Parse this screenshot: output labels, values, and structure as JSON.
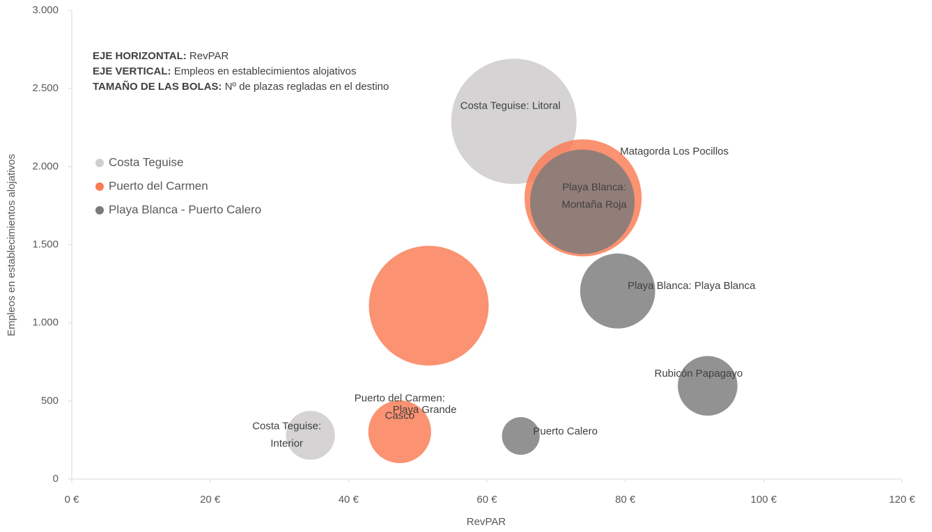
{
  "chart_data": {
    "type": "bubble",
    "x_label": "RevPAR",
    "y_label": "Empleos en establecimientos alojativos",
    "annotations": [
      {
        "label": "EJE HORIZONTAL:",
        "text": "RevPAR"
      },
      {
        "label": "EJE VERTICAL:",
        "text": "Empleos en establecimientos alojativos"
      },
      {
        "label": "TAMAÑO DE LAS BOLAS:",
        "text": "Nº de plazas regladas en el destino"
      }
    ],
    "xlim": [
      0,
      120
    ],
    "xticks": [
      {
        "value": 0,
        "label": "0 €"
      },
      {
        "value": 20,
        "label": "20 €"
      },
      {
        "value": 40,
        "label": "40 €"
      },
      {
        "value": 60,
        "label": "60 €"
      },
      {
        "value": 80,
        "label": "80 €"
      },
      {
        "value": 100,
        "label": "100 €"
      },
      {
        "value": 120,
        "label": "120 €"
      }
    ],
    "ylim": [
      0,
      3000
    ],
    "yticks": [
      0,
      500,
      {
        "value": 1000,
        "label": "1.000"
      },
      {
        "value": 1500,
        "label": "1.500"
      },
      {
        "value": 2000,
        "label": "2.000"
      },
      {
        "value": 2500,
        "label": "2.500"
      },
      {
        "value": 3000,
        "label": "3.000"
      }
    ],
    "legend": "left",
    "series": [
      {
        "name": "Costa Teguise",
        "color": "#d0cece",
        "opacity": 0.9,
        "x": [
          63.9,
          34.5
        ],
        "values": [
          2290,
          280
        ],
        "sizes": [
          24300,
          3700
        ],
        "labels": [
          [
            "Costa Teguise: Litoral"
          ],
          [
            "Costa Teguise:",
            "Interior"
          ]
        ]
      },
      {
        "name": "Puerto del Carmen",
        "color": "#fa7a52",
        "opacity": 0.82,
        "x": [
          73.9,
          51.6,
          47.4
        ],
        "values": [
          1800,
          1110,
          303
        ],
        "sizes": [
          21200,
          22200,
          6100
        ],
        "labels": [
          [
            "Matagorda Los Pocillos"
          ],
          [
            "Playa Grande"
          ],
          [
            "Puerto del Carmen:",
            "Casco"
          ]
        ]
      },
      {
        "name": "Playa Blanca - Puerto Calero",
        "color": "#7a7a7a",
        "opacity": 0.82,
        "x": [
          73.8,
          64.9,
          78.9,
          91.9
        ],
        "values": [
          1775,
          276,
          1204,
          597
        ],
        "sizes": [
          16900,
          2200,
          8700,
          5500
        ],
        "labels": [
          [
            "Playa Blanca:",
            "Montaña Roja"
          ],
          [
            "Puerto Calero"
          ],
          [
            "Playa Blanca: Playa Blanca"
          ],
          [
            "Rubicón Papagayo"
          ]
        ]
      }
    ]
  }
}
